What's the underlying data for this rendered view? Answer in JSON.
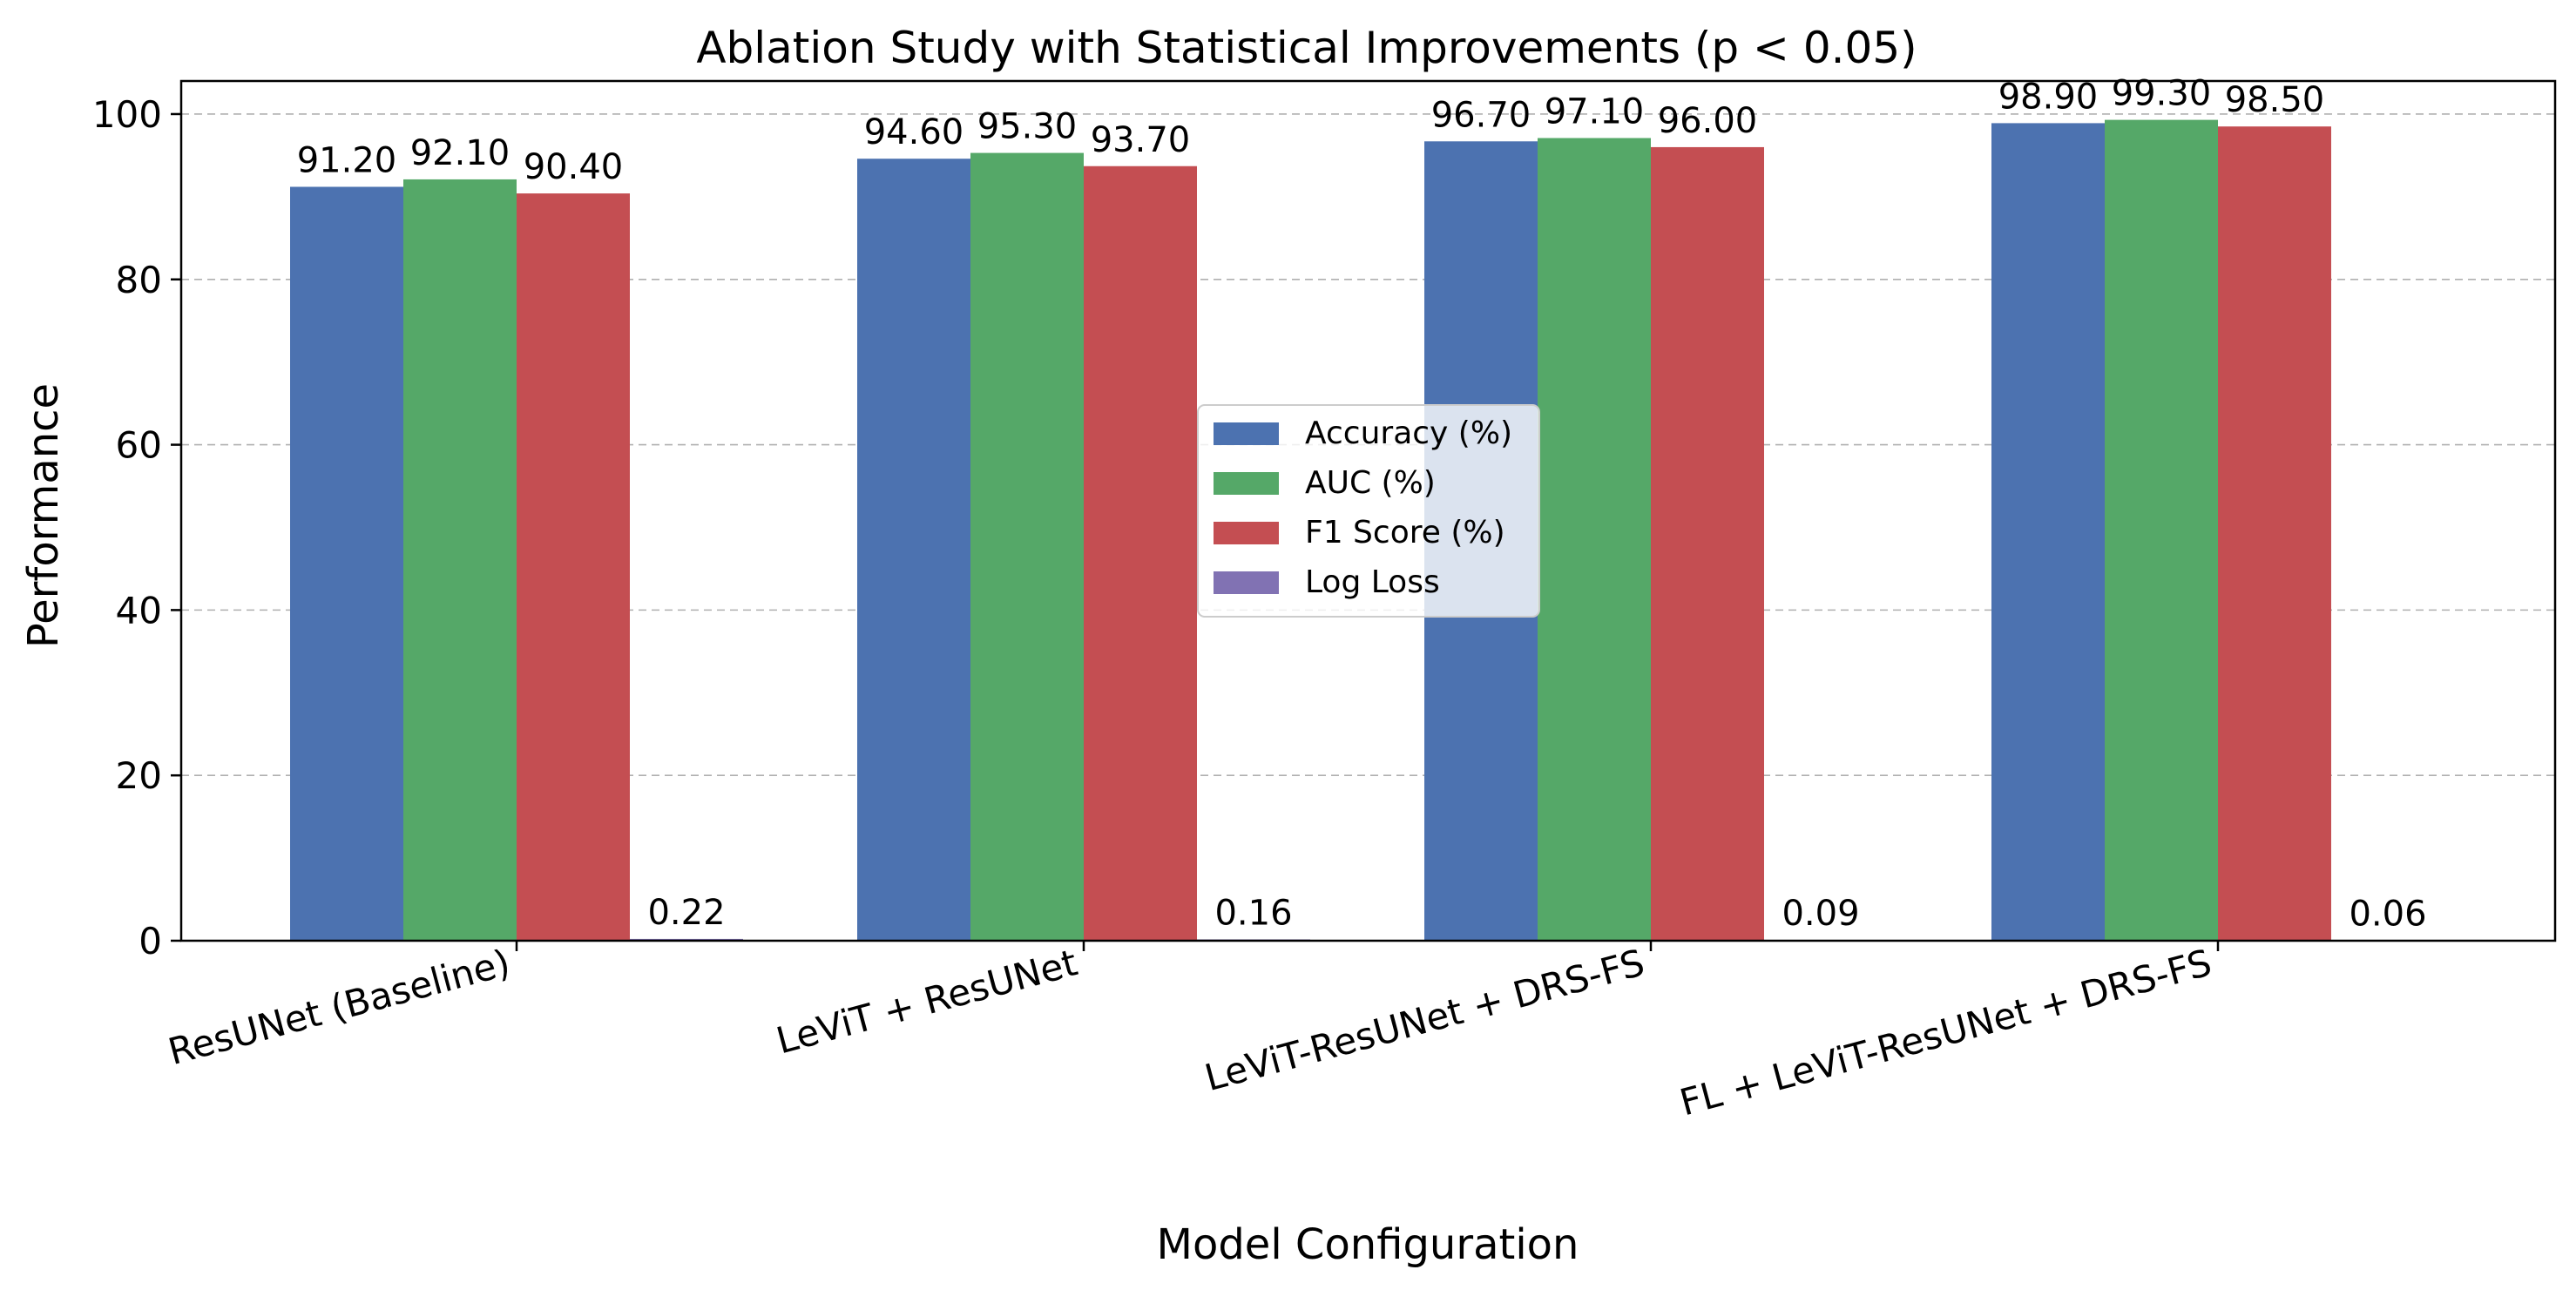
{
  "chart_data": {
    "type": "bar",
    "title": "Ablation Study with Statistical Improvements (p < 0.05)",
    "xlabel": "Model Configuration",
    "ylabel": "Performance",
    "ylim": [
      0,
      104
    ],
    "yticks": [
      0,
      20,
      40,
      60,
      80,
      100
    ],
    "grid": "y-dashed",
    "legend_position": "center",
    "categories": [
      "ResUNet (Baseline)",
      "LeViT + ResUNet",
      "LeViT-ResUNet + DRS-FS",
      "FL + LeViT-ResUNet + DRS-FS"
    ],
    "series": [
      {
        "name": "Accuracy (%)",
        "color": "#4c72b0",
        "values": [
          91.2,
          94.6,
          96.7,
          98.9
        ],
        "labels": [
          "91.20",
          "94.60",
          "96.70",
          "98.90"
        ]
      },
      {
        "name": "AUC (%)",
        "color": "#55a868",
        "values": [
          92.1,
          95.3,
          97.1,
          99.3
        ],
        "labels": [
          "92.10",
          "95.30",
          "97.10",
          "99.30"
        ]
      },
      {
        "name": "F1 Score (%)",
        "color": "#c44e52",
        "values": [
          90.4,
          93.7,
          96.0,
          98.5
        ],
        "labels": [
          "90.40",
          "93.70",
          "96.00",
          "98.50"
        ]
      },
      {
        "name": "Log Loss",
        "color": "#8172b3",
        "values": [
          0.22,
          0.16,
          0.09,
          0.06
        ],
        "labels": [
          "0.22",
          "0.16",
          "0.09",
          "0.06"
        ]
      }
    ]
  }
}
